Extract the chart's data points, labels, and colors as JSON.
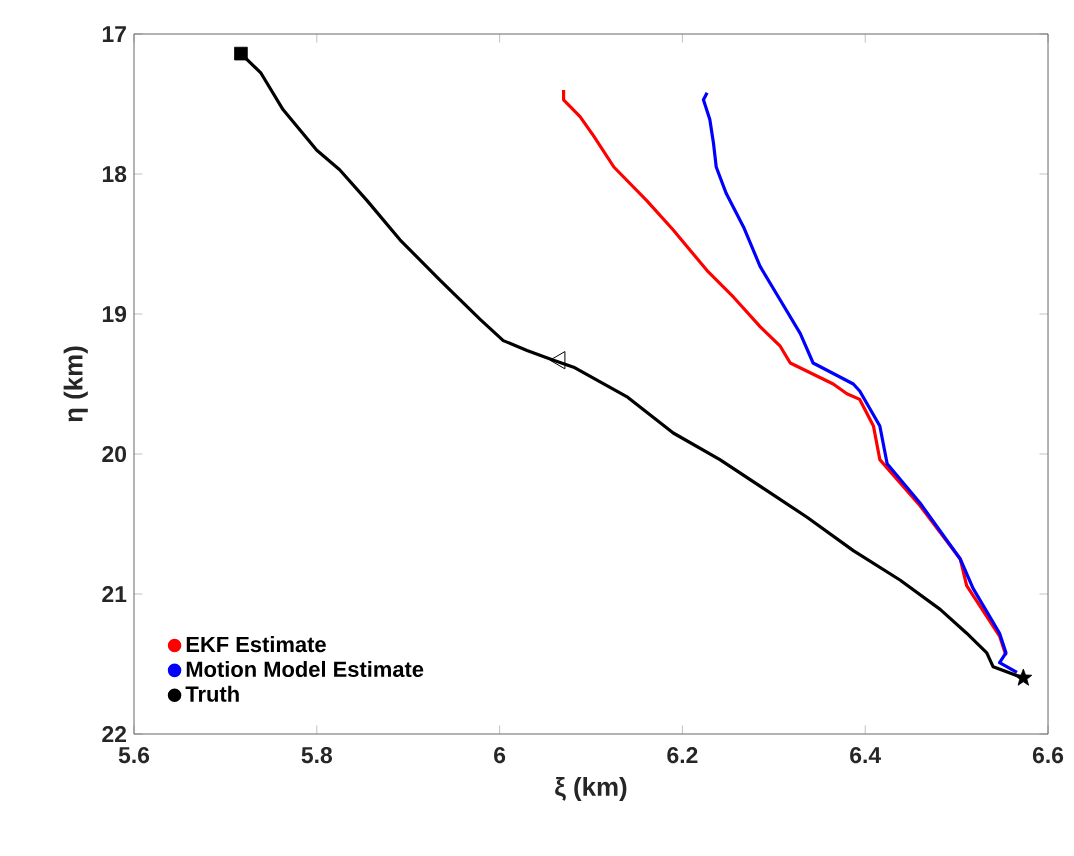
{
  "chart_data": {
    "type": "line",
    "xlabel": "ξ (km)",
    "ylabel": "η (km)",
    "xlim": [
      5.6,
      6.6
    ],
    "xticks": [
      5.6,
      5.8,
      6,
      6.2,
      6.4,
      6.6
    ],
    "ylim": [
      22,
      17
    ],
    "yticks": [
      17,
      18,
      19,
      20,
      21,
      22
    ],
    "legend": "bottom left",
    "grid": false,
    "series": [
      {
        "name": "EKF Estimate",
        "color": "#ff0000",
        "x": [
          6.07,
          6.07,
          6.088,
          6.103,
          6.125,
          6.161,
          6.19,
          6.227,
          6.256,
          6.285,
          6.307,
          6.318,
          6.365,
          6.38,
          6.394,
          6.409,
          6.416,
          6.46,
          6.504,
          6.511,
          6.547,
          6.554
        ],
        "values": [
          17.4,
          17.47,
          17.59,
          17.73,
          17.95,
          18.19,
          18.4,
          18.69,
          18.88,
          19.09,
          19.23,
          19.35,
          19.5,
          19.57,
          19.61,
          19.8,
          20.04,
          20.37,
          20.75,
          20.94,
          21.3,
          21.44
        ]
      },
      {
        "name": "Motion Model Estimate",
        "color": "#0000ff",
        "x": [
          6.227,
          6.223,
          6.23,
          6.234,
          6.237,
          6.248,
          6.267,
          6.285,
          6.307,
          6.329,
          6.343,
          6.387,
          6.394,
          6.416,
          6.424,
          6.46,
          6.504,
          6.518,
          6.547,
          6.554,
          6.547,
          6.566
        ],
        "values": [
          17.42,
          17.47,
          17.61,
          17.78,
          17.95,
          18.14,
          18.38,
          18.66,
          18.9,
          19.14,
          19.35,
          19.5,
          19.55,
          19.8,
          20.07,
          20.35,
          20.75,
          20.96,
          21.28,
          21.42,
          21.49,
          21.56
        ]
      },
      {
        "name": "Truth",
        "color": "#000000",
        "x": [
          5.717,
          5.739,
          5.763,
          5.8,
          5.825,
          5.855,
          5.891,
          5.935,
          5.979,
          6.004,
          6.03,
          6.059,
          6.081,
          6.139,
          6.19,
          6.241,
          6.292,
          6.336,
          6.387,
          6.438,
          6.482,
          6.511,
          6.533,
          6.54,
          6.573
        ],
        "values": [
          17.14,
          17.28,
          17.54,
          17.83,
          17.97,
          18.19,
          18.47,
          18.76,
          19.04,
          19.19,
          19.26,
          19.33,
          19.38,
          19.59,
          19.85,
          20.04,
          20.26,
          20.45,
          20.69,
          20.9,
          21.11,
          21.28,
          21.42,
          21.52,
          21.6
        ]
      },
      {
        "type": "scatter",
        "marker": "square",
        "color": "#000000",
        "x": [
          5.717
        ],
        "values": [
          17.14
        ]
      },
      {
        "type": "scatter",
        "marker": "triangle",
        "color": "#000000",
        "x": [
          6.066
        ],
        "values": [
          19.33
        ]
      },
      {
        "type": "scatter",
        "marker": "star",
        "color": "#000000",
        "x": [
          6.573
        ],
        "values": [
          21.6
        ]
      }
    ]
  }
}
